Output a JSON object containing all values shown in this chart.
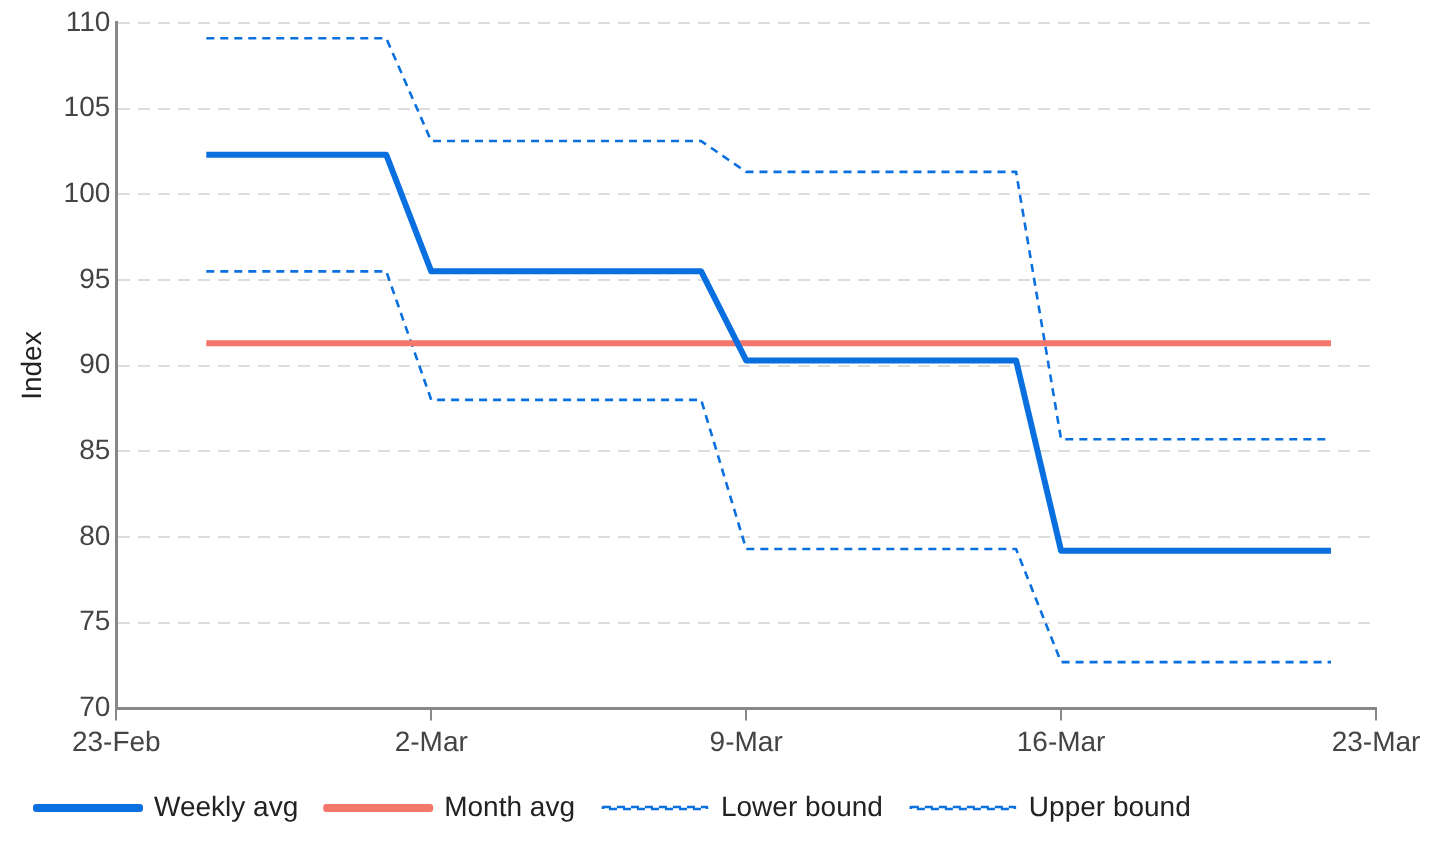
{
  "chart_data": {
    "type": "line",
    "ylabel": "Index",
    "ylim": [
      70,
      110
    ],
    "yticks": [
      70,
      75,
      80,
      85,
      90,
      95,
      100,
      105,
      110
    ],
    "xlim": [
      "--02-23",
      "--03-23"
    ],
    "xticks": [
      {
        "value": "--02-23",
        "label": "23-Feb"
      },
      {
        "value": "--03-02",
        "label": "2-Mar"
      },
      {
        "value": "--03-09",
        "label": "9-Mar"
      },
      {
        "value": "--03-16",
        "label": "16-Mar"
      },
      {
        "value": "--03-23",
        "label": "23-Mar"
      }
    ],
    "grid": "y",
    "legend": "bottom",
    "marker": "none",
    "series": [
      {
        "name": "Weekly avg",
        "color": "#0a6fdf",
        "line_style": "solid",
        "x": [
          "--02-25",
          "--03-01",
          "--03-02",
          "--03-08",
          "--03-09",
          "--03-15",
          "--03-16",
          "--03-22"
        ],
        "values": [
          102.3,
          102.3,
          95.5,
          95.5,
          90.3,
          90.3,
          79.2,
          79.2
        ]
      },
      {
        "name": "Month avg",
        "color": "#f4776b",
        "line_style": "solid",
        "x": [
          "--02-25",
          "--03-22"
        ],
        "values": [
          91.3,
          91.3
        ]
      },
      {
        "name": "Lower bound",
        "color": "#0a6fdf",
        "line_style": "dashed",
        "x": [
          "--02-25",
          "--03-01",
          "--03-02",
          "--03-08",
          "--03-09",
          "--03-15",
          "--03-16",
          "--03-22"
        ],
        "values": [
          95.5,
          95.5,
          88.0,
          88.0,
          79.3,
          79.3,
          72.7,
          72.7
        ]
      },
      {
        "name": "Upper bound",
        "color": "#0a6fdf",
        "line_style": "dashed",
        "x": [
          "--02-25",
          "--03-01",
          "--03-02",
          "--03-08",
          "--03-09",
          "--03-15",
          "--03-16",
          "--03-22"
        ],
        "values": [
          109.1,
          109.1,
          103.1,
          103.1,
          101.3,
          101.3,
          85.7,
          85.7
        ]
      }
    ]
  }
}
